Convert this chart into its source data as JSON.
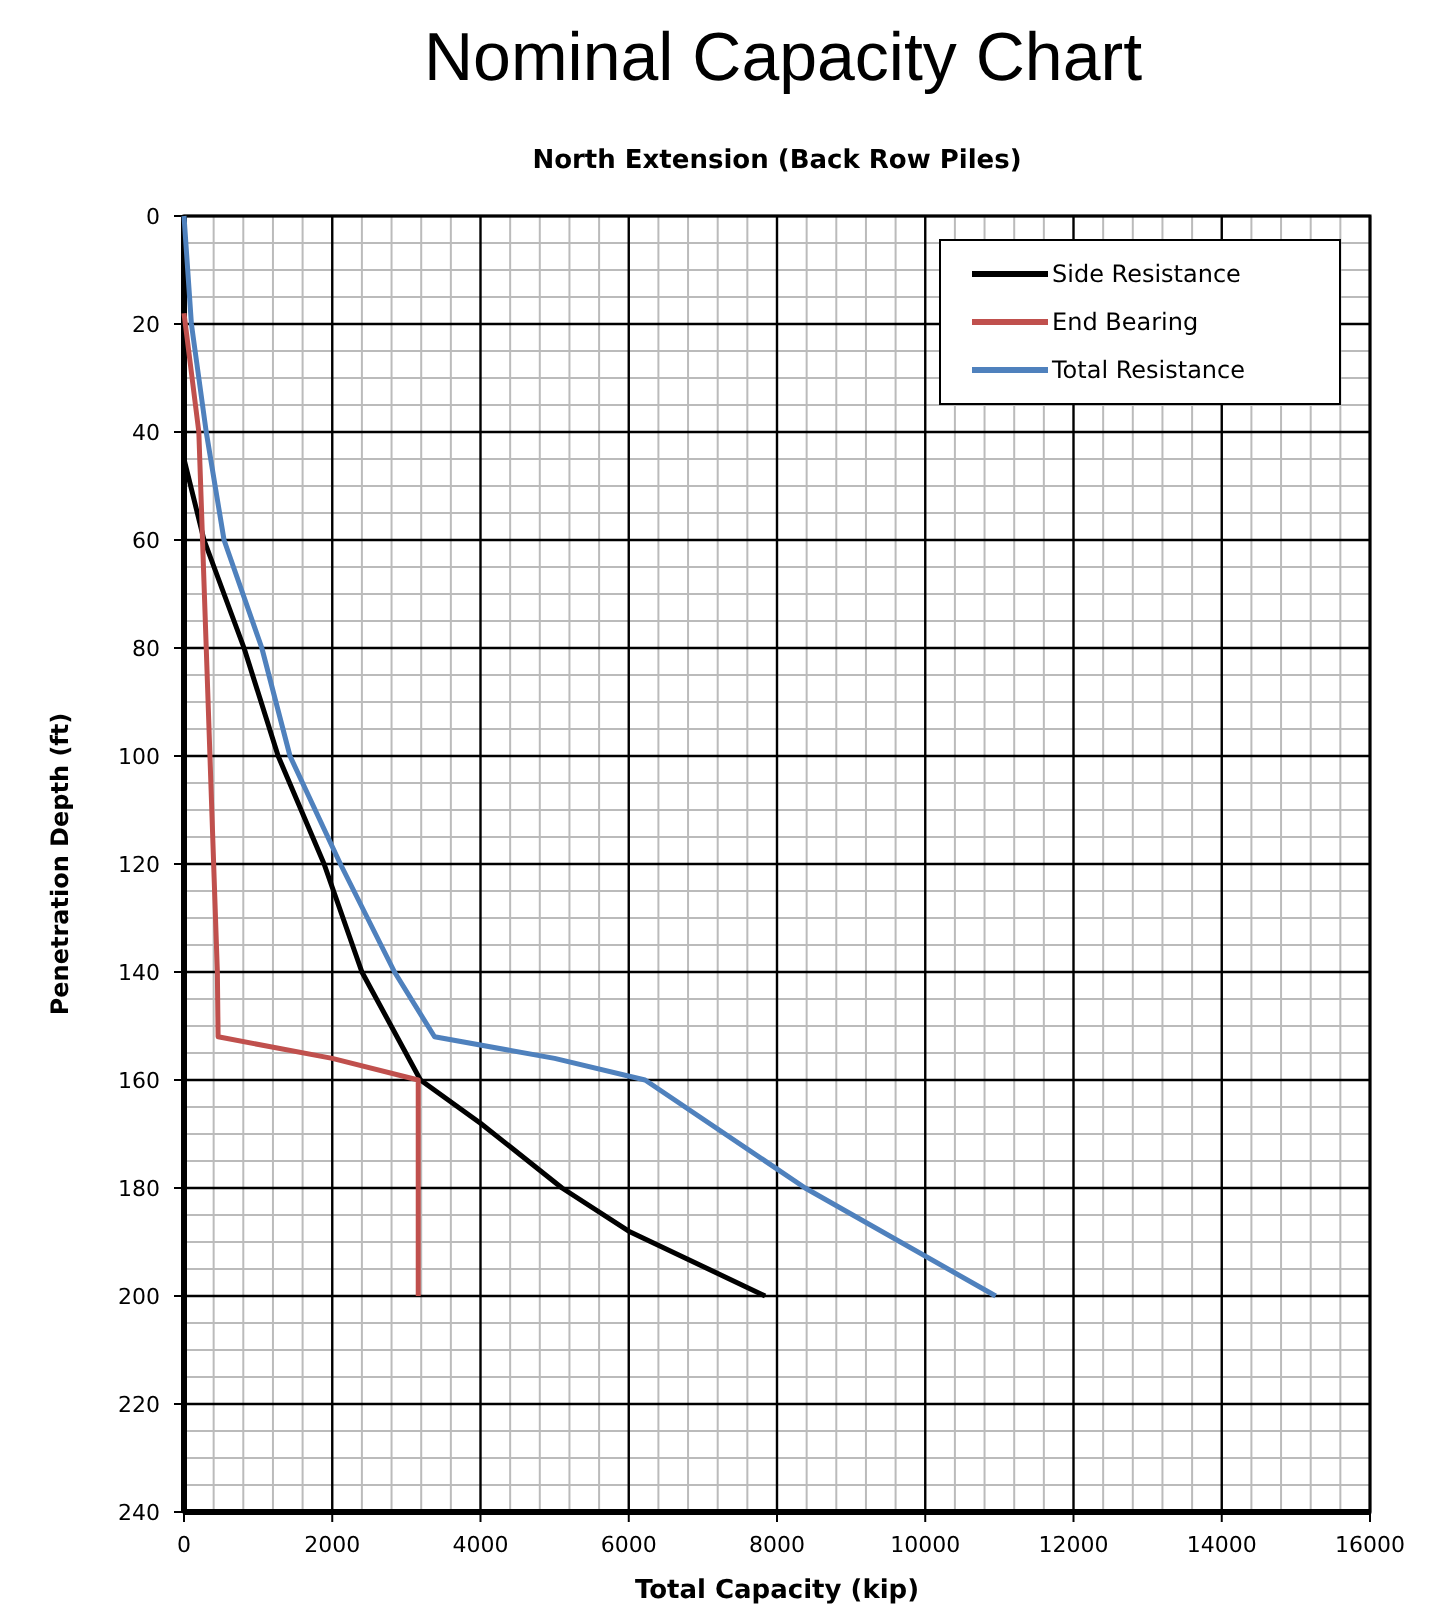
{
  "chart_data": {
    "type": "line",
    "title": "Nominal Capacity Chart",
    "subtitle": "North Extension (Back Row Piles)",
    "xlabel": "Total Capacity (kip)",
    "ylabel": "Penetration Depth (ft)",
    "xlim": [
      0,
      16000
    ],
    "xticks": [
      0,
      2000,
      4000,
      6000,
      8000,
      10000,
      12000,
      14000,
      16000
    ],
    "ylim": [
      240,
      0
    ],
    "yticks": [
      0,
      20,
      40,
      60,
      80,
      100,
      120,
      140,
      160,
      180,
      200,
      220,
      240
    ],
    "grid": true,
    "legend": "top right",
    "marker": "none",
    "line_style": "solid",
    "series": [
      {
        "name": "Side Resistance",
        "color": "#000000",
        "x": [
          0,
          0,
          270,
          810,
          1270,
          1890,
          2400,
          3190,
          4000,
          5100,
          6000,
          7840
        ],
        "values": [
          0,
          45,
          60,
          80,
          100,
          120,
          140,
          160,
          168,
          180,
          188,
          200
        ]
      },
      {
        "name": "End Bearing",
        "color": "#c0504d",
        "x": [
          0,
          200,
          250,
          300,
          350,
          400,
          450,
          460,
          2000,
          3160,
          3160
        ],
        "values": [
          18,
          40,
          60,
          80,
          100,
          120,
          140,
          152,
          156,
          160,
          200
        ]
      },
      {
        "name": "Total Resistance",
        "color": "#4f81bd",
        "x": [
          0,
          100,
          300,
          540,
          1050,
          1430,
          2110,
          2840,
          3380,
          5000,
          6220,
          8380,
          10950
        ],
        "values": [
          0,
          20,
          40,
          60,
          80,
          100,
          120,
          140,
          152,
          156,
          160,
          180,
          200
        ]
      }
    ]
  }
}
